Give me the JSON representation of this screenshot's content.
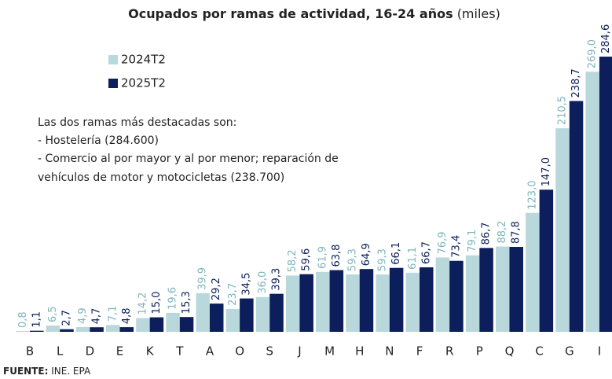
{
  "chart_data": {
    "type": "bar",
    "title": "Ocupados por ramas de actividad, 16-24 años",
    "subtitle": "(miles)",
    "annotation": [
      "Las dos ramas más destacadas son:",
      "- Hostelería (284.600)",
      "- Comercio al por mayor y al por menor; reparación de",
      "vehículos de motor y motocicletas (238.700)"
    ],
    "source_label": "FUENTE:",
    "source": "INE. EPA",
    "categories": [
      "B",
      "L",
      "D",
      "E",
      "K",
      "T",
      "A",
      "O",
      "S",
      "J",
      "M",
      "H",
      "N",
      "F",
      "R",
      "P",
      "Q",
      "C",
      "G",
      "I"
    ],
    "series": [
      {
        "name": "2024T2",
        "color": "#b9d8dc",
        "label_color": "#7fb5be",
        "values": [
          0.8,
          6.5,
          4.9,
          7.1,
          14.2,
          19.6,
          39.9,
          23.7,
          36.0,
          58.2,
          61.9,
          59.3,
          59.3,
          61.1,
          76.9,
          79.1,
          88.2,
          123.0,
          210.5,
          269.0
        ],
        "value_labels": [
          "0,8",
          "6,5",
          "4,9",
          "7,1",
          "14,2",
          "19,6",
          "39,9",
          "23,7",
          "36,0",
          "58,2",
          "61,9",
          "59,3",
          "59,3",
          "61,1",
          "76,9",
          "79,1",
          "88,2",
          "123,0",
          "210,5",
          "269,0"
        ]
      },
      {
        "name": "2025T2",
        "color": "#0c1e5b",
        "label_color": "#0c1e5b",
        "values": [
          1.1,
          2.7,
          4.7,
          4.8,
          15.0,
          15.3,
          29.2,
          34.5,
          39.3,
          59.6,
          63.8,
          64.9,
          66.1,
          66.7,
          73.4,
          86.7,
          87.8,
          147.0,
          238.7,
          284.6
        ],
        "value_labels": [
          "1,1",
          "2,7",
          "4,7",
          "4,8",
          "15,0",
          "15,3",
          "29,2",
          "34,5",
          "39,3",
          "59,6",
          "63,8",
          "64,9",
          "66,1",
          "66,7",
          "73,4",
          "86,7",
          "87,8",
          "147,0",
          "238,7",
          "284,6"
        ]
      }
    ]
  }
}
